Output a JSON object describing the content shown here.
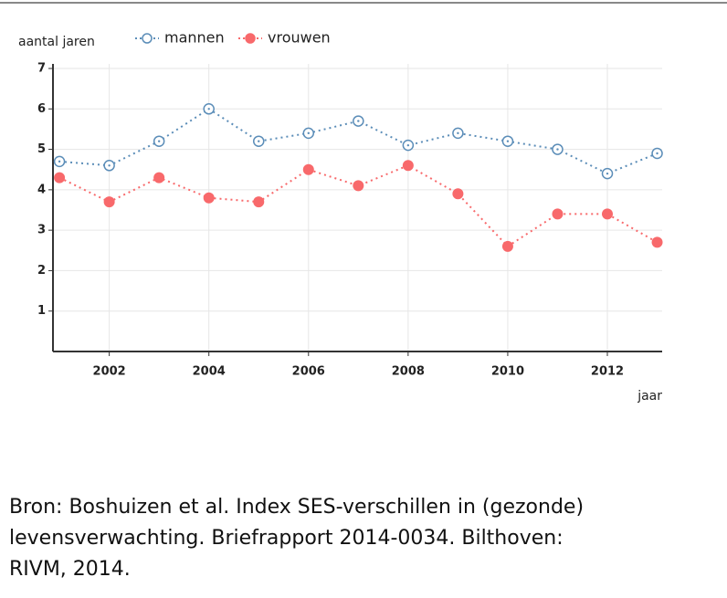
{
  "chart_data": {
    "type": "line",
    "y_label": "aantal jaren",
    "x_label": "jaar",
    "x": [
      2001,
      2002,
      2003,
      2004,
      2005,
      2006,
      2007,
      2008,
      2009,
      2010,
      2011,
      2012,
      2013
    ],
    "series": [
      {
        "name": "mannen",
        "color": "#5b8db8",
        "marker": "open",
        "values": [
          4.7,
          4.6,
          5.2,
          6.0,
          5.2,
          5.4,
          5.7,
          5.1,
          5.4,
          5.2,
          5.0,
          4.4,
          4.9
        ]
      },
      {
        "name": "vrouwen",
        "color": "#f8696b",
        "marker": "filled",
        "values": [
          4.3,
          3.7,
          4.3,
          3.8,
          3.7,
          4.5,
          4.1,
          4.6,
          3.9,
          2.6,
          3.4,
          3.4,
          2.7
        ]
      }
    ],
    "xlim": [
      2000.87,
      2013.1
    ],
    "xticks": [
      2002,
      2004,
      2006,
      2008,
      2010,
      2012
    ],
    "ylim": [
      0,
      7
    ],
    "yticks": [
      1,
      2,
      3,
      4,
      5,
      6,
      7
    ],
    "grid": true,
    "source_lines": [
      "Bron: Boshuizen et al. Index SES-verschillen in (gezonde)",
      "levensverwachting. Briefrapport 2014-0034. Bilthoven:",
      "RIVM, 2014."
    ]
  }
}
